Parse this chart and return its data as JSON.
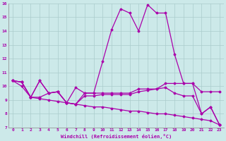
{
  "xlabel": "Windchill (Refroidissement éolien,°C)",
  "xlim": [
    -0.5,
    23.5
  ],
  "ylim": [
    7,
    16
  ],
  "xticks": [
    0,
    1,
    2,
    3,
    4,
    5,
    6,
    7,
    8,
    9,
    10,
    11,
    12,
    13,
    14,
    15,
    16,
    17,
    18,
    19,
    20,
    21,
    22,
    23
  ],
  "yticks": [
    7,
    8,
    9,
    10,
    11,
    12,
    13,
    14,
    15,
    16
  ],
  "background_color": "#cce9e9",
  "line_color": "#aa00aa",
  "grid_color": "#aacccc",
  "s1": [
    10.4,
    10.3,
    9.2,
    10.4,
    9.5,
    9.6,
    8.8,
    8.7,
    9.5,
    9.5,
    11.8,
    14.1,
    15.6,
    15.3,
    14.0,
    15.9,
    15.3,
    15.3,
    12.3,
    10.2,
    10.2,
    8.0,
    8.5,
    7.2
  ],
  "s2": [
    10.4,
    10.3,
    9.2,
    10.4,
    9.5,
    9.6,
    8.8,
    9.9,
    9.5,
    9.5,
    9.5,
    9.5,
    9.5,
    9.5,
    9.8,
    9.8,
    9.8,
    10.2,
    10.2,
    10.2,
    10.2,
    9.6,
    9.6,
    9.6
  ],
  "s3": [
    10.4,
    10.3,
    9.2,
    9.2,
    9.5,
    9.6,
    8.8,
    8.7,
    9.3,
    9.3,
    9.4,
    9.4,
    9.4,
    9.4,
    9.6,
    9.7,
    9.8,
    9.9,
    9.5,
    9.3,
    9.3,
    8.0,
    8.5,
    7.2
  ],
  "s4": [
    10.4,
    10.0,
    9.2,
    9.1,
    9.0,
    8.9,
    8.8,
    8.7,
    8.6,
    8.5,
    8.5,
    8.4,
    8.3,
    8.2,
    8.2,
    8.1,
    8.0,
    8.0,
    7.9,
    7.8,
    7.7,
    7.6,
    7.5,
    7.2
  ]
}
